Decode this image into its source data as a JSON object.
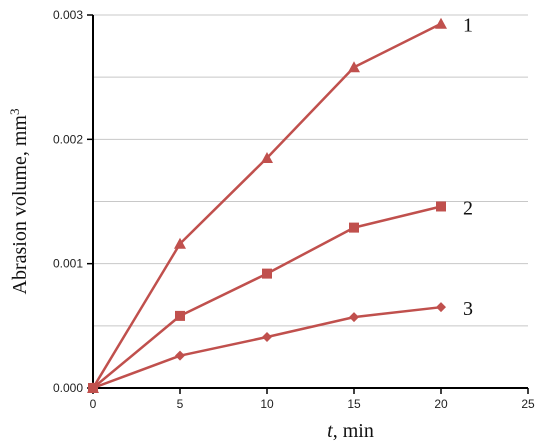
{
  "chart_data": {
    "type": "line",
    "title": "",
    "xlabel": {
      "italic": "t",
      "rest": ", min"
    },
    "ylabel": "Abrasion volume, mm",
    "ylabel_superscript": "3",
    "xlim": [
      0,
      25
    ],
    "ylim": [
      0,
      0.003
    ],
    "xticks": [
      "0",
      "5",
      "10",
      "15",
      "20",
      "25"
    ],
    "yticks": [
      "0.000",
      "0.001",
      "0.002",
      "0.003"
    ],
    "grid": "horizontal",
    "line_color": "#c0504d",
    "x": [
      0,
      5,
      10,
      15,
      20
    ],
    "series": [
      {
        "name": "1",
        "marker": "triangle",
        "values": [
          0,
          0.00116,
          0.00185,
          0.00258,
          0.00293
        ]
      },
      {
        "name": "2",
        "marker": "square",
        "values": [
          0,
          0.00058,
          0.00092,
          0.00129,
          0.00146
        ]
      },
      {
        "name": "3",
        "marker": "diamond",
        "values": [
          0,
          0.00026,
          0.00041,
          0.00057,
          0.00065
        ]
      }
    ]
  }
}
